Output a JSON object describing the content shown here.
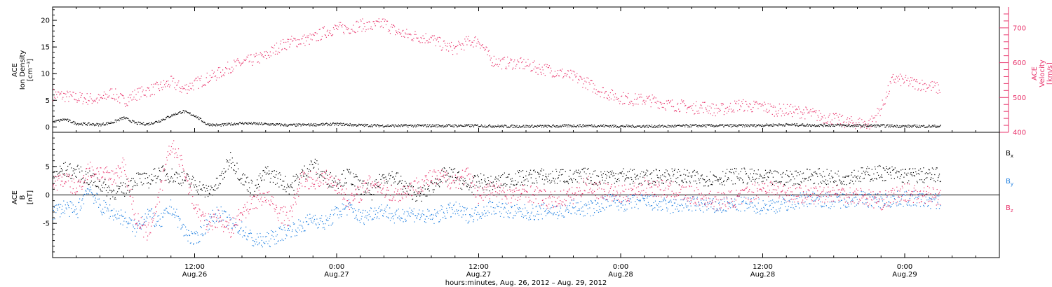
{
  "colors": {
    "black": "#000000",
    "pink": "#e8336b",
    "blue": "#1f7fe0"
  },
  "time_axis": {
    "label": "hours:minutes, Aug. 26, 2012 – Aug. 29, 2012",
    "ticks": [
      {
        "t": 12,
        "time": "12:00",
        "date": "Aug.26"
      },
      {
        "t": 24,
        "time": "0:00",
        "date": "Aug.27"
      },
      {
        "t": 36,
        "time": "12:00",
        "date": "Aug.27"
      },
      {
        "t": 48,
        "time": "0:00",
        "date": "Aug.28"
      },
      {
        "t": 60,
        "time": "12:00",
        "date": "Aug.28"
      },
      {
        "t": 72,
        "time": "0:00",
        "date": "Aug.29"
      }
    ]
  },
  "chart_data": [
    {
      "type": "scatter",
      "panel": "top",
      "x_units": "hours since Aug. 26, 2012 00:00",
      "xlim": [
        0,
        80
      ],
      "left_axis": {
        "label_lines": [
          "ACE",
          "Ion Density",
          "[cm⁻³]"
        ],
        "ylim": [
          -1,
          22.5
        ],
        "ticks": [
          0,
          5,
          10,
          15,
          20
        ]
      },
      "right_axis": {
        "label_lines": [
          "ACE",
          "Velocity",
          "[km/s]"
        ],
        "ylim": [
          400,
          760
        ],
        "ticks": [
          400,
          500,
          600,
          700
        ]
      },
      "series": [
        {
          "axis": "right",
          "color": "#e8336b",
          "x": [
            0,
            2,
            4,
            5,
            6,
            7,
            8,
            9,
            10,
            11,
            12,
            13,
            14,
            15,
            16,
            18,
            19,
            20,
            21,
            22,
            23,
            24,
            25,
            26,
            27,
            28,
            29,
            30,
            31,
            32,
            33,
            34,
            35,
            36,
            37,
            38,
            39,
            40,
            41,
            42,
            43,
            44,
            45,
            46,
            47,
            48,
            49,
            50,
            51,
            52,
            53,
            54,
            55,
            56,
            57,
            58,
            59,
            60,
            61,
            62,
            63,
            64,
            65,
            66,
            67,
            68,
            69,
            70,
            71,
            72,
            73,
            74,
            75
          ],
          "y": [
            510,
            500,
            495,
            515,
            490,
            510,
            520,
            530,
            545,
            525,
            540,
            555,
            570,
            590,
            600,
            620,
            645,
            660,
            665,
            670,
            690,
            700,
            700,
            710,
            705,
            715,
            690,
            680,
            675,
            670,
            650,
            640,
            660,
            665,
            610,
            600,
            600,
            595,
            585,
            580,
            570,
            560,
            545,
            525,
            510,
            500,
            495,
            495,
            490,
            480,
            478,
            470,
            475,
            465,
            470,
            480,
            475,
            475,
            465,
            465,
            460,
            455,
            445,
            440,
            430,
            428,
            425,
            470,
            555,
            548,
            540,
            535,
            525
          ]
        },
        {
          "axis": "left",
          "color": "#000000",
          "x": [
            0,
            1,
            2,
            3,
            4,
            5,
            6,
            7,
            8,
            9,
            10,
            11,
            12,
            13,
            14,
            16,
            18,
            20,
            22,
            24,
            26,
            28,
            30,
            32,
            34,
            36,
            38,
            40,
            42,
            44,
            46,
            48,
            50,
            52,
            54,
            56,
            58,
            60,
            62,
            64,
            66,
            68,
            70,
            72,
            74,
            75
          ],
          "y": [
            1.0,
            1.5,
            0.7,
            0.6,
            0.5,
            0.9,
            1.8,
            0.8,
            0.6,
            1.2,
            2.2,
            3.0,
            2.2,
            0.6,
            0.4,
            0.8,
            0.6,
            0.4,
            0.5,
            0.6,
            0.4,
            0.3,
            0.3,
            0.3,
            0.3,
            0.3,
            0.2,
            0.2,
            0.2,
            0.3,
            0.3,
            0.2,
            0.2,
            0.2,
            0.3,
            0.3,
            0.3,
            0.4,
            0.5,
            0.4,
            0.4,
            0.3,
            0.3,
            0.2,
            0.2,
            0.2
          ]
        }
      ]
    },
    {
      "type": "scatter",
      "panel": "bottom",
      "x_units": "hours since Aug. 26, 2012 00:00",
      "xlim": [
        0,
        80
      ],
      "left_axis": {
        "label_lines": [
          "ACE",
          "B",
          "[nT]"
        ],
        "ylim": [
          -11,
          11
        ],
        "ticks": [
          -5,
          0,
          5
        ],
        "zero_line": true
      },
      "legend": {
        "placement": "right",
        "entries": [
          {
            "name": "B",
            "sub": "x",
            "color": "#000000"
          },
          {
            "name": "B",
            "sub": "y",
            "color": "#1f7fe0"
          },
          {
            "name": "B",
            "sub": "z",
            "color": "#e8336b"
          }
        ]
      },
      "series": [
        {
          "name": "Bx",
          "color": "#000000",
          "x": [
            0,
            1,
            2,
            3,
            4,
            5,
            6,
            7,
            8,
            9,
            10,
            11,
            12,
            13,
            14,
            15,
            16,
            17,
            18,
            19,
            20,
            21,
            22,
            23,
            24,
            25,
            26,
            27,
            28,
            29,
            30,
            31,
            32,
            33,
            34,
            35,
            36,
            37,
            38,
            39,
            40,
            41,
            42,
            43,
            44,
            45,
            46,
            47,
            48,
            50,
            52,
            54,
            56,
            58,
            60,
            62,
            64,
            66,
            68,
            70,
            72,
            74,
            75
          ],
          "y": [
            3.5,
            4.5,
            4.0,
            3.0,
            2.0,
            0.5,
            1.0,
            3.0,
            2.5,
            4.0,
            3.5,
            3.0,
            2.0,
            0.5,
            2.0,
            6.5,
            3.0,
            1.0,
            4.0,
            3.0,
            1.5,
            3.5,
            5.5,
            3.0,
            2.5,
            3.5,
            1.5,
            0.5,
            3.5,
            3.0,
            1.0,
            0.0,
            1.5,
            3.5,
            3.5,
            1.5,
            2.5,
            2.0,
            2.5,
            3.0,
            3.0,
            3.5,
            3.0,
            3.5,
            3.0,
            3.5,
            3.0,
            3.5,
            3.5,
            3.0,
            3.5,
            3.0,
            3.0,
            3.5,
            3.0,
            3.0,
            3.5,
            3.0,
            3.5,
            4.0,
            3.5,
            3.5,
            3.5
          ]
        },
        {
          "name": "By",
          "color": "#1f7fe0",
          "x": [
            0,
            1,
            2,
            3,
            4,
            5,
            6,
            7,
            8,
            9,
            10,
            11,
            12,
            13,
            14,
            15,
            16,
            17,
            18,
            19,
            20,
            21,
            22,
            23,
            24,
            25,
            26,
            27,
            28,
            29,
            30,
            31,
            32,
            33,
            34,
            35,
            36,
            37,
            38,
            39,
            40,
            41,
            42,
            43,
            44,
            45,
            46,
            47,
            48,
            50,
            52,
            54,
            56,
            58,
            60,
            62,
            64,
            66,
            68,
            70,
            72,
            74,
            75
          ],
          "y": [
            -3.0,
            -2.0,
            -3.0,
            1.5,
            -2.0,
            -3.0,
            -4.0,
            -6.0,
            -3.0,
            -5.0,
            -2.0,
            -6.0,
            -8.0,
            -5.0,
            -3.0,
            -5.0,
            -6.0,
            -8.0,
            -8.0,
            -7.0,
            -6.0,
            -5.5,
            -4.0,
            -5.0,
            -3.0,
            -2.0,
            -4.0,
            -3.0,
            -2.5,
            -4.0,
            -3.0,
            -3.5,
            -4.0,
            -3.0,
            -2.5,
            -3.5,
            -3.0,
            -2.0,
            -2.5,
            -3.0,
            -3.0,
            -3.0,
            -2.5,
            -3.0,
            -2.0,
            -2.5,
            -2.0,
            -1.0,
            -1.5,
            -1.0,
            -2.0,
            -1.5,
            -2.0,
            -1.5,
            -2.0,
            -1.5,
            -0.5,
            -1.0,
            -0.5,
            -1.0,
            -0.5,
            -1.0,
            -1.0
          ]
        },
        {
          "name": "Bz",
          "color": "#e8336b",
          "x": [
            0,
            1,
            2,
            3,
            4,
            5,
            6,
            7,
            8,
            9,
            10,
            11,
            12,
            13,
            14,
            15,
            16,
            17,
            18,
            19,
            20,
            21,
            22,
            23,
            24,
            25,
            26,
            27,
            28,
            29,
            30,
            31,
            32,
            33,
            34,
            35,
            36,
            37,
            38,
            39,
            40,
            41,
            42,
            43,
            44,
            45,
            46,
            47,
            48,
            50,
            52,
            54,
            56,
            58,
            60,
            62,
            64,
            66,
            68,
            70,
            72,
            74,
            75
          ],
          "y": [
            2.0,
            3.0,
            1.0,
            4.5,
            4.0,
            3.0,
            5.5,
            -4.0,
            -7.0,
            0.0,
            9.0,
            5.0,
            -2.0,
            -5.0,
            -4.0,
            -6.0,
            -3.0,
            -1.0,
            0.0,
            -3.0,
            -4.0,
            3.0,
            2.5,
            3.0,
            2.0,
            -1.0,
            0.5,
            2.5,
            1.0,
            0.0,
            1.0,
            2.0,
            3.0,
            3.0,
            2.5,
            3.5,
            0.0,
            1.0,
            0.5,
            0.0,
            0.5,
            0.0,
            -1.0,
            -0.5,
            0.0,
            2.0,
            1.0,
            0.5,
            0.0,
            1.5,
            1.0,
            0.0,
            -1.0,
            -0.5,
            1.5,
            0.5,
            0.0,
            0.5,
            0.0,
            -1.0,
            0.5,
            0.0,
            -0.5
          ]
        }
      ]
    }
  ]
}
